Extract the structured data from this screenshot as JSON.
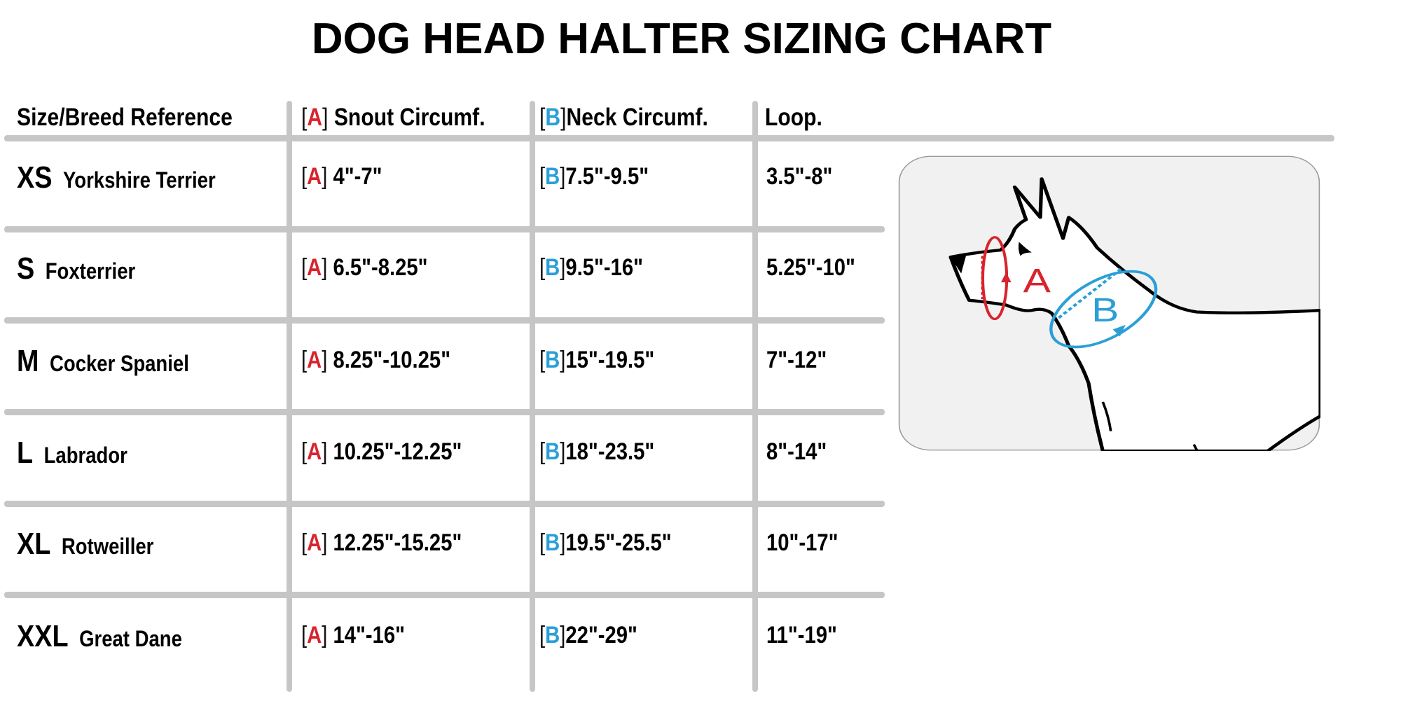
{
  "title": "DOG HEAD HALTER SIZING CHART",
  "headers": {
    "size_breed": "Size/Breed Reference",
    "snout_tag": "A",
    "snout": "Snout Circumf.",
    "neck_tag": "B",
    "neck": "Neck Circumf.",
    "loop": "Loop."
  },
  "rows": [
    {
      "size": "XS",
      "breed": "Yorkshire Terrier",
      "snout": "4\"-7\"",
      "neck": "7.5\"-9.5\"",
      "loop": "3.5\"-8\""
    },
    {
      "size": "S",
      "breed": "Foxterrier",
      "snout": "6.5\"-8.25\"",
      "neck": "9.5\"-16\"",
      "loop": "5.25\"-10\""
    },
    {
      "size": "M",
      "breed": "Cocker Spaniel",
      "snout": "8.25\"-10.25\"",
      "neck": "15\"-19.5\"",
      "loop": "7\"-12\""
    },
    {
      "size": "L",
      "breed": "Labrador",
      "snout": "10.25\"-12.25\"",
      "neck": "18\"-23.5\"",
      "loop": "8\"-14\""
    },
    {
      "size": "XL",
      "breed": "Rotweiller",
      "snout": "12.25\"-15.25\"",
      "neck": "19.5\"-25.5\"",
      "loop": "10\"-17\""
    },
    {
      "size": "XXL",
      "breed": "Great Dane",
      "snout": "14\"-16\"",
      "neck": "22\"-29\"",
      "loop": "11\"-19\""
    }
  ],
  "diagram": {
    "label_a": "A",
    "label_b": "B",
    "color_a": "#d9232d",
    "color_b": "#2a9fd6"
  },
  "colors": {
    "grid": "#c6c6c6"
  }
}
